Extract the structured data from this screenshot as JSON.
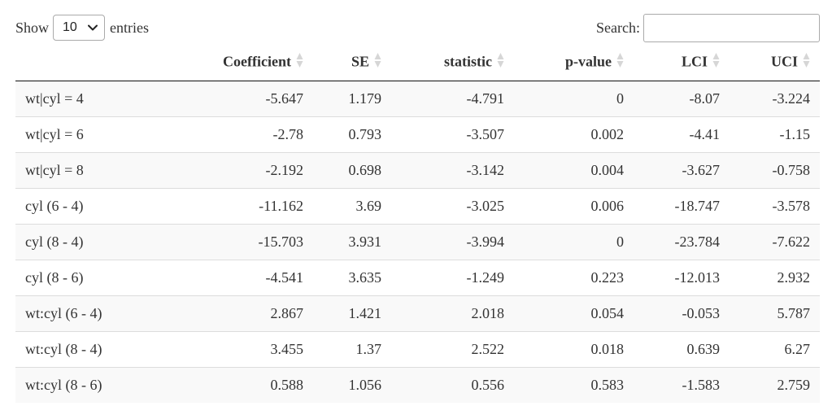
{
  "length_control": {
    "show_label": "Show",
    "selected": "10",
    "entries_label": "entries"
  },
  "search": {
    "label": "Search:",
    "value": ""
  },
  "table": {
    "columns": [
      "",
      "Coefficient",
      "SE",
      "statistic",
      "p-value",
      "LCI",
      "UCI"
    ],
    "rows": [
      [
        "wt|cyl = 4",
        "-5.647",
        "1.179",
        "-4.791",
        "0",
        "-8.07",
        "-3.224"
      ],
      [
        "wt|cyl = 6",
        "-2.78",
        "0.793",
        "-3.507",
        "0.002",
        "-4.41",
        "-1.15"
      ],
      [
        "wt|cyl = 8",
        "-2.192",
        "0.698",
        "-3.142",
        "0.004",
        "-3.627",
        "-0.758"
      ],
      [
        "cyl (6 - 4)",
        "-11.162",
        "3.69",
        "-3.025",
        "0.006",
        "-18.747",
        "-3.578"
      ],
      [
        "cyl (8 - 4)",
        "-15.703",
        "3.931",
        "-3.994",
        "0",
        "-23.784",
        "-7.622"
      ],
      [
        "cyl (8 - 6)",
        "-4.541",
        "3.635",
        "-1.249",
        "0.223",
        "-12.013",
        "2.932"
      ],
      [
        "wt:cyl (6 - 4)",
        "2.867",
        "1.421",
        "2.018",
        "0.054",
        "-0.053",
        "5.787"
      ],
      [
        "wt:cyl (8 - 4)",
        "3.455",
        "1.37",
        "2.522",
        "0.018",
        "0.639",
        "6.27"
      ],
      [
        "wt:cyl (8 - 6)",
        "0.588",
        "1.056",
        "0.556",
        "0.583",
        "-1.583",
        "2.759"
      ]
    ]
  },
  "icons": {
    "sort": "sort-both-icon",
    "dropdown": "chevron-down-icon"
  },
  "colors": {
    "sort_icon": "#d6d6d6",
    "stripe": "#f9f9f9",
    "header_border": "#111111"
  }
}
